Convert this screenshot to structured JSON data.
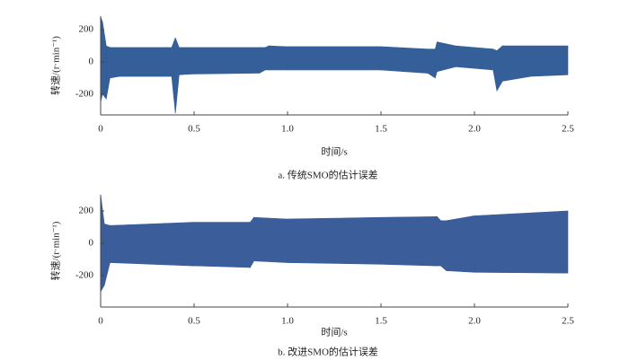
{
  "chart_data": [
    {
      "type": "range-area",
      "caption": "a. 传统SMO的估计误差",
      "xlabel": "时间/s",
      "ylabel": "转速/(r·min⁻¹)",
      "color": "#355f98",
      "x": [
        0,
        0.01,
        0.03,
        0.05,
        0.1,
        0.38,
        0.4,
        0.42,
        0.5,
        0.85,
        0.88,
        0.9,
        1.0,
        1.5,
        1.75,
        1.79,
        1.8,
        1.9,
        2.1,
        2.12,
        2.15,
        2.3,
        2.5
      ],
      "high": [
        280,
        250,
        100,
        90,
        90,
        90,
        150,
        90,
        90,
        90,
        90,
        100,
        95,
        95,
        80,
        80,
        125,
        100,
        80,
        70,
        100,
        100,
        100
      ],
      "low": [
        -250,
        -200,
        -230,
        -100,
        -90,
        -90,
        -320,
        -80,
        -75,
        -70,
        -50,
        -50,
        -50,
        -50,
        -70,
        -100,
        -60,
        -30,
        -50,
        -180,
        -120,
        -90,
        -80
      ],
      "xlim": [
        0,
        2.5
      ],
      "ylim": [
        -330,
        285
      ],
      "xticks": [
        0,
        0.5,
        {
          "value": 1,
          "label": "1.0"
        },
        1.5,
        {
          "value": 2,
          "label": "2.0"
        },
        2.5
      ],
      "yticks": [
        200,
        0,
        -200
      ]
    },
    {
      "type": "range-area",
      "caption": "b. 改进SMO的估计误差",
      "xlabel": "时间/s",
      "ylabel": "转速/(r·min⁻¹)",
      "color": "#3b5d9a",
      "x": [
        0,
        0.02,
        0.05,
        0.5,
        0.8,
        0.82,
        1.0,
        1.5,
        1.8,
        1.82,
        1.85,
        2.0,
        2.5
      ],
      "high": [
        300,
        120,
        110,
        130,
        130,
        160,
        150,
        160,
        165,
        140,
        140,
        170,
        200
      ],
      "low": [
        -300,
        -260,
        -120,
        -140,
        -150,
        -110,
        -120,
        -130,
        -140,
        -140,
        -170,
        -180,
        -185
      ],
      "xlim": [
        0,
        2.5
      ],
      "ylim": [
        -395,
        300
      ],
      "xticks": [
        0,
        0.5,
        {
          "value": 1,
          "label": "1.0"
        },
        1.5,
        {
          "value": 2,
          "label": "2.0"
        },
        2.5
      ],
      "yticks": [
        200,
        0,
        -200
      ]
    }
  ]
}
